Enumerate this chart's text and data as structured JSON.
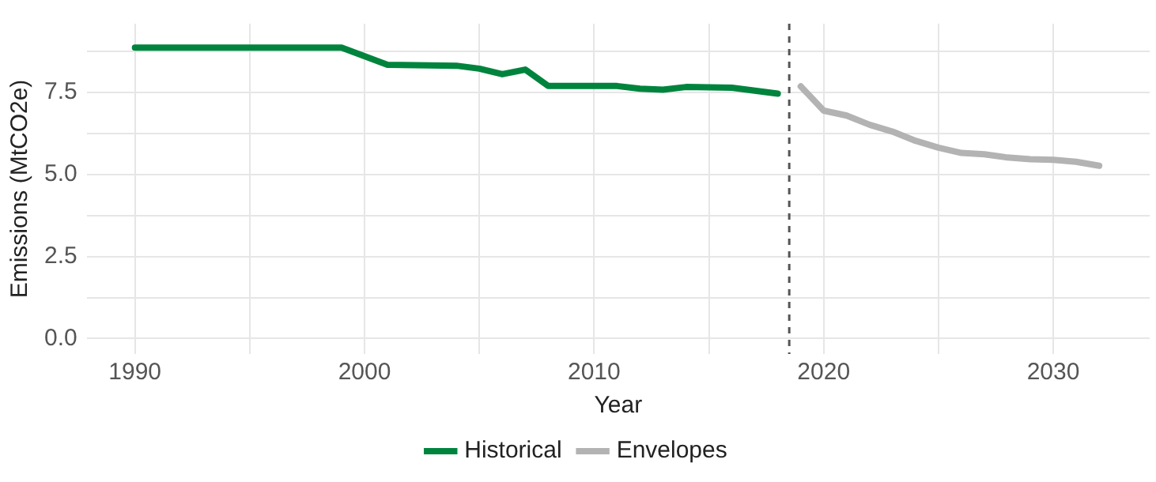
{
  "chart_data": {
    "type": "line",
    "xlabel": "Year",
    "ylabel": "Emissions (MtCO2e)",
    "xlim": [
      1987.9,
      2034.2
    ],
    "ylim": [
      -0.47,
      9.6
    ],
    "xticks": [
      1990,
      {
        "value": 1995,
        "label": null
      },
      2000,
      {
        "value": 2005,
        "label": null
      },
      2010,
      {
        "value": 2015,
        "label": null
      },
      2020,
      {
        "value": 2025,
        "label": null
      },
      2030
    ],
    "yticks": [
      {
        "value": 0,
        "label": "0.0"
      },
      {
        "value": 1.25,
        "label": null
      },
      {
        "value": 2.5,
        "label": "2.5"
      },
      {
        "value": 3.75,
        "label": null
      },
      {
        "value": 5,
        "label": "5.0"
      },
      {
        "value": 6.25,
        "label": null
      },
      {
        "value": 7.5,
        "label": "7.5"
      },
      {
        "value": 8.75,
        "label": null
      }
    ],
    "grid": true,
    "legend": "bottom",
    "line_style": "solid",
    "marker": "none",
    "ref_lines": [
      {
        "axis": "x",
        "value": 2018.5,
        "color": "#555555",
        "line_style": "dashed"
      }
    ],
    "series": [
      {
        "name": "Historical",
        "color": "#00843d",
        "x": [
          1990,
          1999,
          2001,
          2004,
          2005,
          2006,
          2007,
          2008,
          2011,
          2012,
          2013,
          2014,
          2016,
          2017,
          2018
        ],
        "values": [
          8.87,
          8.87,
          8.35,
          8.32,
          8.23,
          8.06,
          8.2,
          7.7,
          7.7,
          7.62,
          7.59,
          7.67,
          7.65,
          7.56,
          7.47
        ]
      },
      {
        "name": "Envelopes",
        "color": "#b3b3b3",
        "x": [
          2019,
          2020,
          2021,
          2022,
          2023,
          2024,
          2025,
          2026,
          2027,
          2028,
          2029,
          2030,
          2031,
          2032
        ],
        "values": [
          7.69,
          6.95,
          6.8,
          6.52,
          6.31,
          6.03,
          5.82,
          5.66,
          5.62,
          5.52,
          5.47,
          5.45,
          5.39,
          5.27
        ]
      }
    ]
  }
}
